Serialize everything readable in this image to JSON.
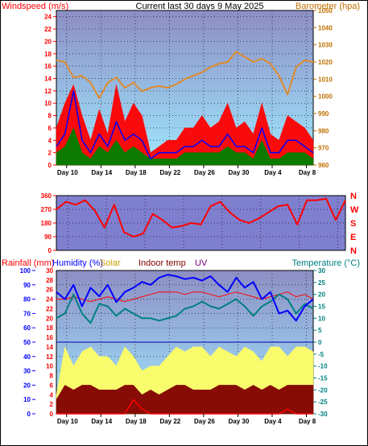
{
  "header": {
    "left_title": "Windspeed (m/s)",
    "center_title": "Current last 30 days 9 May 2025",
    "right_title": "Barometer (hpa)"
  },
  "colors": {
    "wind_gust": "#ff0000",
    "wind_avg": "#0000ff",
    "wind_min": "#008000",
    "barometer": "#e08a2a",
    "direction": "#ff0000",
    "rainfall": "#ff0000",
    "humidity": "#0000ff",
    "solar": "#ffff66",
    "indoor": "#ff0000",
    "uv": "#800000",
    "temperature": "#008080",
    "axis_left": "#ff0000",
    "axis_right_baro": "#c07000",
    "axis_right_temp": "#008080",
    "plot_top": "#8d8ec4",
    "plot_bottom": "#9fe8ff",
    "dir_plot_bg": "#7f7fd0"
  },
  "x_ticks": [
    "Day 10",
    "Day 14",
    "Day 18",
    "Day 22",
    "Day 26",
    "Day 30",
    "Day 4",
    "Day 8"
  ],
  "chart_data": [
    {
      "type": "line",
      "name": "wind",
      "left_axis": {
        "label": "Windspeed (m/s)",
        "ticks": [
          0,
          2,
          4,
          6,
          8,
          10,
          12,
          14,
          16,
          18,
          20,
          22,
          24
        ],
        "ylim": [
          0,
          25
        ]
      },
      "right_axis": {
        "label": "Barometer (hpa)",
        "ticks": [
          960,
          970,
          980,
          990,
          1000,
          1010,
          1020,
          1030,
          1040,
          1050
        ],
        "ylim": [
          960,
          1050
        ]
      },
      "x_days": [
        0,
        1,
        2,
        3,
        4,
        5,
        6,
        7,
        8,
        9,
        10,
        11,
        12,
        13,
        14,
        15,
        16,
        17,
        18,
        19,
        20,
        21,
        22,
        23,
        24,
        25,
        26,
        27,
        28,
        29,
        30
      ],
      "series": [
        {
          "name": "Barometer",
          "axis": "right",
          "values": [
            1021,
            1020,
            1011,
            1012,
            1008,
            999,
            1008,
            1011,
            1005,
            1008,
            1003,
            1005,
            1006,
            1005,
            1007,
            1010,
            1012,
            1014,
            1017,
            1019,
            1020,
            1026,
            1023,
            1020,
            1022,
            1019,
            1012,
            1001,
            1017,
            1021,
            1020
          ]
        },
        {
          "name": "Gust",
          "axis": "left",
          "values": [
            6,
            10,
            13,
            8,
            4,
            9,
            5,
            13,
            7,
            10,
            8,
            2,
            3,
            4,
            4,
            6,
            6,
            8,
            6,
            7,
            10,
            6,
            7,
            5,
            10,
            5,
            4,
            8,
            7,
            6,
            4
          ]
        },
        {
          "name": "Average",
          "axis": "left",
          "values": [
            3,
            5,
            12,
            4,
            2,
            5,
            3,
            7,
            4,
            5,
            4,
            1,
            2,
            2,
            2,
            3,
            3,
            4,
            3,
            3,
            5,
            3,
            3,
            2,
            6,
            2,
            2,
            4,
            4,
            3,
            2
          ]
        },
        {
          "name": "Low",
          "axis": "left",
          "values": [
            2,
            3,
            6,
            2,
            1,
            3,
            2,
            4,
            2,
            3,
            2,
            1,
            1,
            1,
            1,
            2,
            2,
            2,
            2,
            2,
            3,
            2,
            2,
            1,
            4,
            1,
            1,
            2,
            2,
            2,
            1
          ]
        }
      ]
    },
    {
      "type": "line",
      "name": "wind direction",
      "left_axis": {
        "ticks": [
          0,
          90,
          180,
          270,
          360
        ],
        "ylim": [
          0,
          360
        ]
      },
      "right_axis": {
        "labels": [
          "N",
          "W",
          "S",
          "E",
          "N"
        ]
      },
      "x_days": [
        0,
        1,
        2,
        3,
        4,
        5,
        6,
        7,
        8,
        9,
        10,
        11,
        12,
        13,
        14,
        15,
        16,
        17,
        18,
        19,
        20,
        21,
        22,
        23,
        24,
        25,
        26,
        27,
        28,
        29,
        30
      ],
      "series": [
        {
          "name": "Direction",
          "values": [
            270,
            320,
            300,
            330,
            260,
            150,
            300,
            120,
            90,
            110,
            240,
            200,
            150,
            160,
            180,
            170,
            290,
            320,
            250,
            200,
            180,
            210,
            250,
            290,
            300,
            170,
            330,
            330,
            340,
            200,
            330
          ]
        }
      ]
    },
    {
      "type": "line",
      "name": "rain humidity temperature",
      "header": [
        "Rainfall (mm)",
        "Humidity (%)",
        "Solar",
        "Indoor temp",
        "UV",
        "Temperature (°C)"
      ],
      "left_axis_rain": {
        "label": "Rainfall (mm)",
        "ticks": [
          0,
          2,
          4,
          6,
          8,
          10,
          12,
          14,
          16,
          18,
          20,
          22,
          24,
          26,
          28,
          30
        ],
        "ylim": [
          0,
          30
        ]
      },
      "left_axis_humidity": {
        "label": "Humidity (%)",
        "ticks": [
          0,
          10,
          20,
          30,
          40,
          50,
          60,
          70,
          80,
          90,
          100
        ],
        "ylim": [
          0,
          100
        ]
      },
      "right_axis": {
        "label": "Temperature (°C)",
        "ticks": [
          -30,
          -25,
          -20,
          -15,
          -10,
          -5,
          0,
          5,
          10,
          15,
          20,
          25,
          30
        ],
        "ylim": [
          -30,
          30
        ]
      },
      "x_days": [
        0,
        1,
        2,
        3,
        4,
        5,
        6,
        7,
        8,
        9,
        10,
        11,
        12,
        13,
        14,
        15,
        16,
        17,
        18,
        19,
        20,
        21,
        22,
        23,
        24,
        25,
        26,
        27,
        28,
        29,
        30
      ],
      "series": [
        {
          "name": "Humidity",
          "axis": "humidity",
          "values": [
            85,
            80,
            90,
            75,
            88,
            82,
            90,
            78,
            85,
            88,
            92,
            90,
            95,
            97,
            96,
            94,
            95,
            93,
            96,
            90,
            85,
            95,
            88,
            92,
            80,
            85,
            70,
            72,
            65,
            75,
            80
          ]
        },
        {
          "name": "Indoor temp",
          "axis": "temperature",
          "values": [
            18,
            18,
            19,
            18,
            17,
            18,
            19,
            18,
            17,
            18,
            19,
            20,
            21,
            21,
            21,
            20,
            21,
            21,
            20,
            19,
            20,
            21,
            20,
            19,
            18,
            19,
            20,
            21,
            19,
            20,
            18
          ]
        },
        {
          "name": "Temperature",
          "axis": "temperature",
          "values": [
            10,
            12,
            20,
            12,
            8,
            16,
            15,
            11,
            14,
            12,
            10,
            10,
            9,
            10,
            11,
            14,
            15,
            17,
            15,
            14,
            16,
            18,
            15,
            11,
            15,
            17,
            20,
            18,
            12,
            16,
            14
          ]
        },
        {
          "name": "Solar",
          "axis": "rain",
          "values": [
            4,
            14,
            10,
            13,
            14,
            12,
            12,
            10,
            14,
            12,
            9,
            10,
            10,
            12,
            14,
            13,
            14,
            14,
            12,
            14,
            13,
            12,
            14,
            13,
            11,
            14,
            14,
            12,
            14,
            14,
            13
          ]
        },
        {
          "name": "UV",
          "axis": "rain",
          "values": [
            3,
            6,
            5,
            6,
            6,
            5,
            5,
            5,
            6,
            6,
            4,
            5,
            4,
            5,
            6,
            6,
            5,
            5,
            5,
            6,
            6,
            6,
            5,
            6,
            5,
            6,
            5,
            6,
            6,
            6,
            6
          ]
        },
        {
          "name": "Rainfall",
          "axis": "rain",
          "values": [
            0,
            0,
            0,
            0,
            0,
            0,
            0,
            0,
            0,
            3,
            1,
            0,
            0,
            0,
            0,
            0,
            0,
            0,
            0,
            0,
            0,
            0,
            0,
            0,
            0,
            0,
            0,
            1,
            0,
            0,
            0
          ]
        }
      ]
    }
  ]
}
